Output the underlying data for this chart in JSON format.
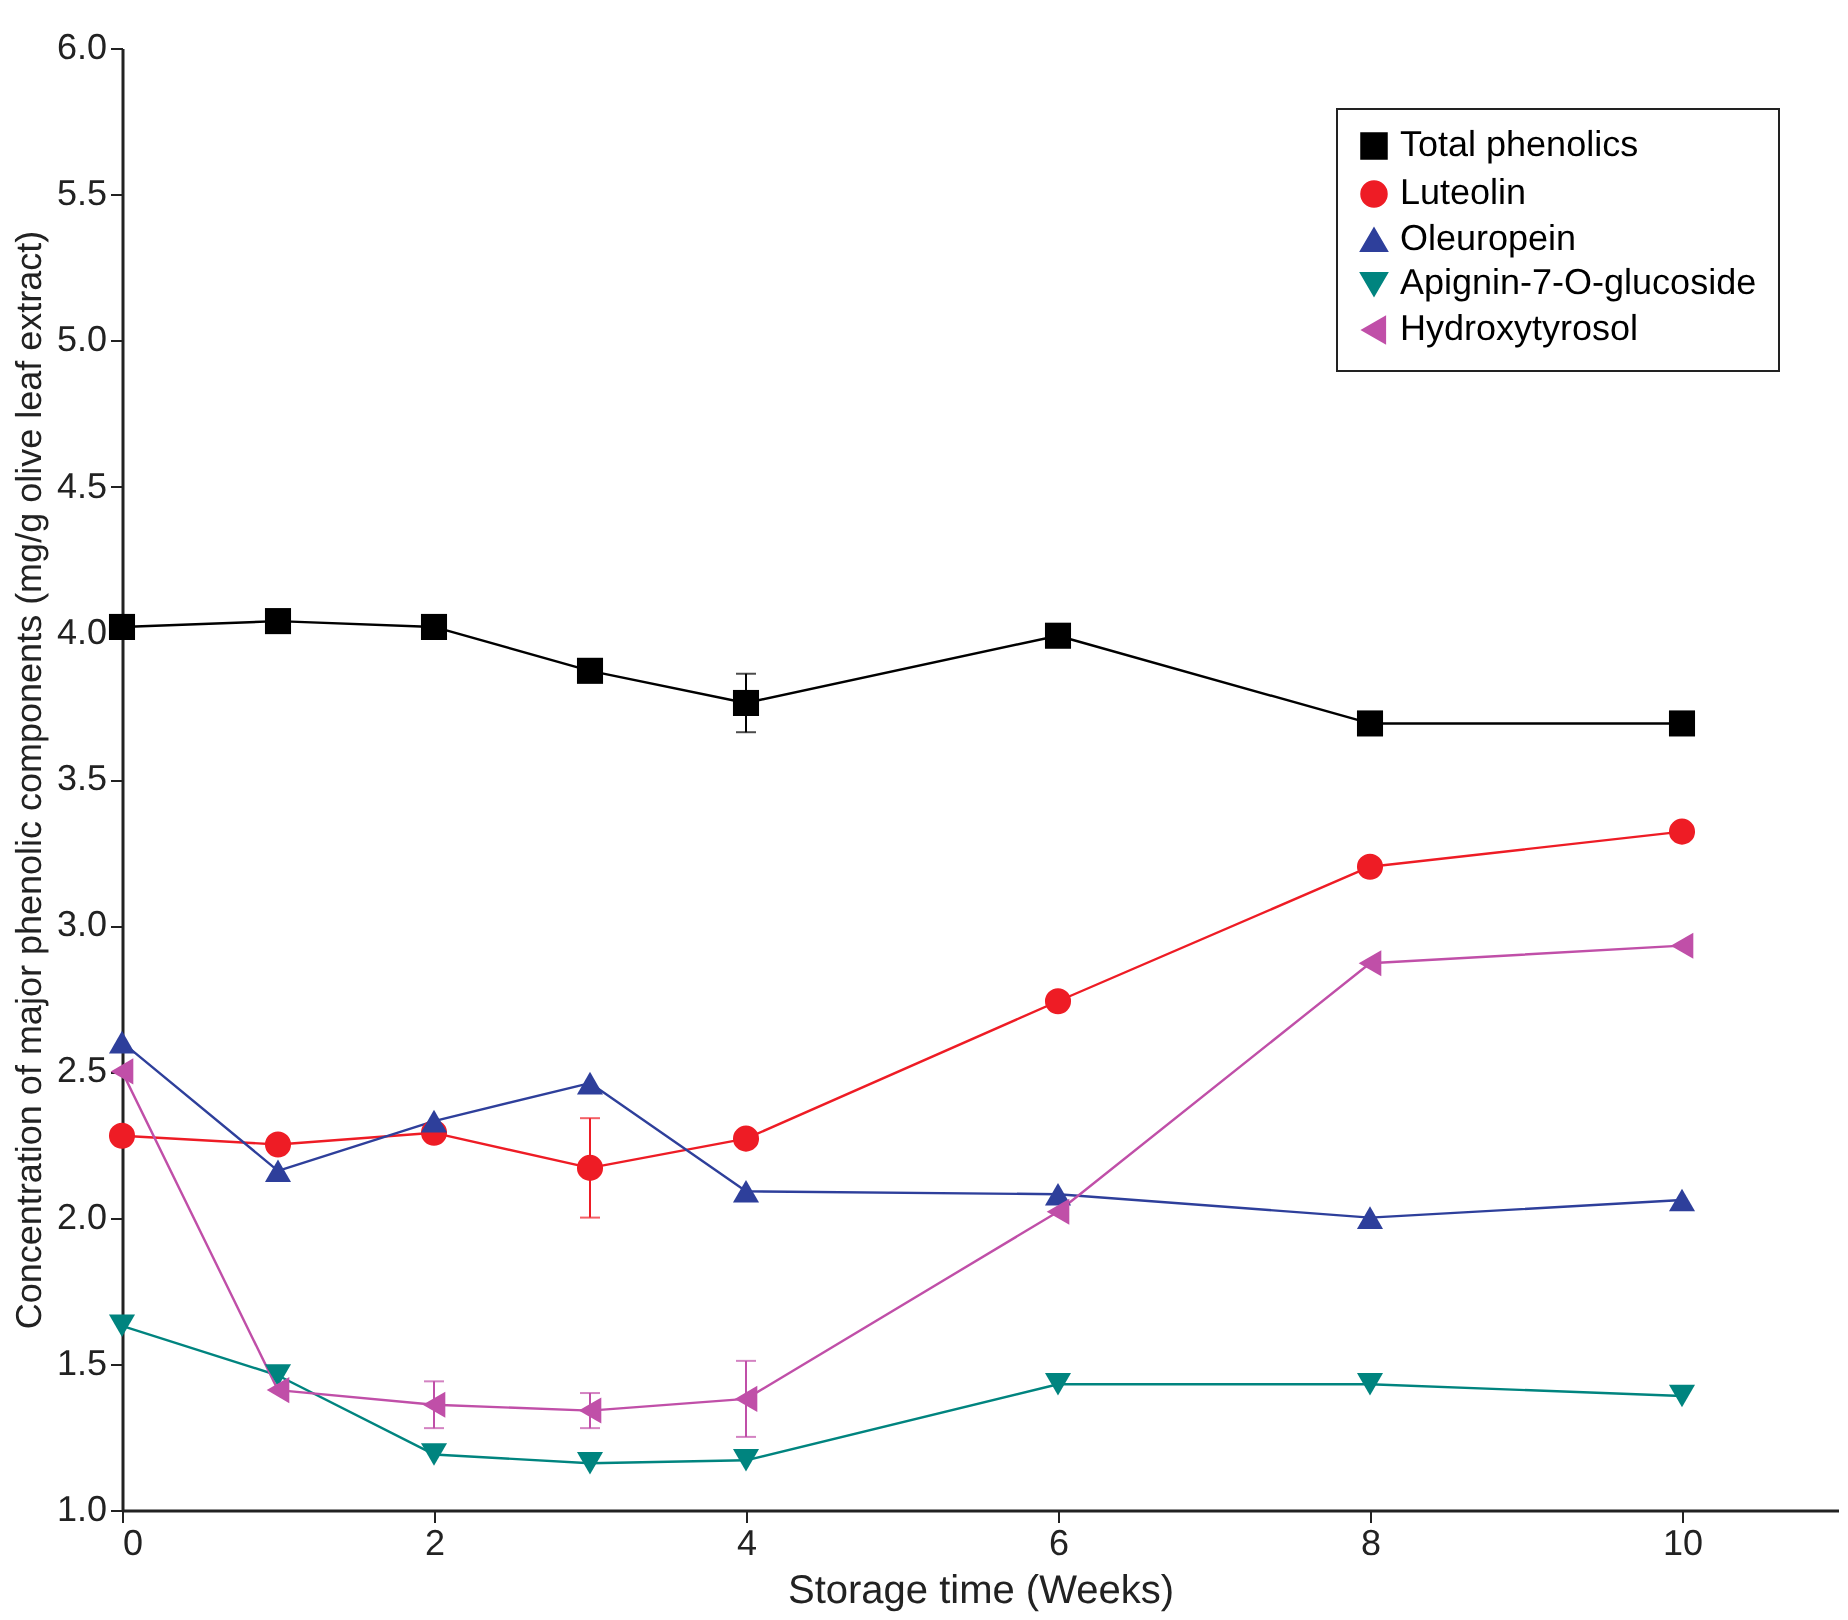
{
  "chart_data": {
    "type": "line",
    "xlabel": "Storage time (Weeks)",
    "ylabel": "Concentration of major phenolic components (mg/g olive leaf extract)",
    "x": [
      0,
      1,
      2,
      3,
      4,
      6,
      8,
      10
    ],
    "xlim": [
      0,
      11
    ],
    "xticks": [
      0,
      2,
      4,
      6,
      8,
      10
    ],
    "ylim": [
      1.0,
      6.0
    ],
    "yticks": [
      {
        "value": 1.0,
        "label": "1.0"
      },
      1.5,
      {
        "value": 2.0,
        "label": "2.0"
      },
      2.5,
      {
        "value": 3.0,
        "label": "3.0"
      },
      3.5,
      {
        "value": 4.0,
        "label": "4.0"
      },
      4.5,
      {
        "value": 5.0,
        "label": "5.0"
      },
      5.5,
      {
        "value": 6.0,
        "label": "6.0"
      }
    ],
    "grid": false,
    "legend": "top right",
    "line_style": "solid",
    "series": [
      {
        "name": "Total phenolics",
        "color": "#000000",
        "marker": "square",
        "values": [
          4.02,
          4.04,
          4.02,
          3.87,
          3.76,
          3.99,
          3.69,
          3.69
        ],
        "errors": [
          null,
          null,
          null,
          null,
          0.1,
          null,
          null,
          null
        ]
      },
      {
        "name": "Luteolin",
        "color": "#ee1c25",
        "marker": "circle",
        "values": [
          2.28,
          2.25,
          2.29,
          2.17,
          2.27,
          2.74,
          3.2,
          3.32
        ],
        "errors": [
          null,
          null,
          null,
          0.17,
          null,
          null,
          null,
          null
        ]
      },
      {
        "name": "Oleuropein",
        "color": "#2e3f9b",
        "marker": "triangle",
        "values": [
          2.6,
          2.16,
          2.33,
          2.46,
          2.09,
          2.08,
          2.0,
          2.06
        ],
        "errors": [
          null,
          null,
          null,
          null,
          null,
          null,
          null,
          null
        ]
      },
      {
        "name": "Apignin-7-O-glucoside",
        "color": "#00847f",
        "marker": "triangle-down",
        "values": [
          1.63,
          1.46,
          1.19,
          1.16,
          1.17,
          1.43,
          1.43,
          1.39
        ],
        "errors": [
          null,
          null,
          null,
          null,
          null,
          null,
          null,
          null
        ]
      },
      {
        "name": "Hydroxytyrosol",
        "color": "#c04fa8",
        "marker": "triangle-left",
        "values": [
          2.5,
          1.41,
          1.36,
          1.34,
          1.38,
          2.02,
          2.87,
          2.93
        ],
        "errors": [
          null,
          null,
          0.08,
          0.06,
          0.13,
          null,
          null,
          null
        ]
      }
    ]
  }
}
